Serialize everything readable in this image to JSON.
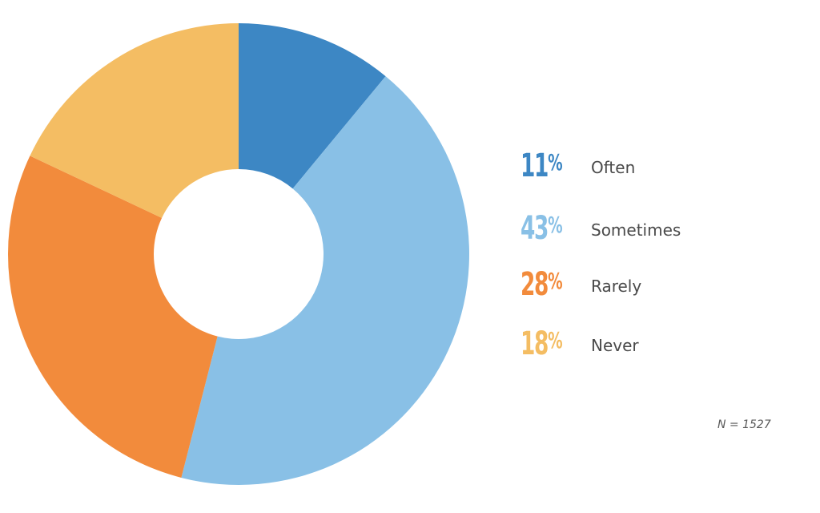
{
  "chart_data": {
    "type": "pie",
    "variant": "donut",
    "start": "top",
    "direction": "clockwise",
    "slices": [
      {
        "label": "Often",
        "value": 11,
        "display": "11",
        "color": "#3d87c4"
      },
      {
        "label": "Sometimes",
        "value": 43,
        "display": "43",
        "color": "#89c0e6"
      },
      {
        "label": "Rarely",
        "value": 28,
        "display": "28",
        "color": "#f28b3c"
      },
      {
        "label": "Never",
        "value": 18,
        "display": "18",
        "color": "#f4bd63"
      }
    ],
    "percent_symbol": "%",
    "legend_position": "right",
    "note": "N = 1527"
  }
}
